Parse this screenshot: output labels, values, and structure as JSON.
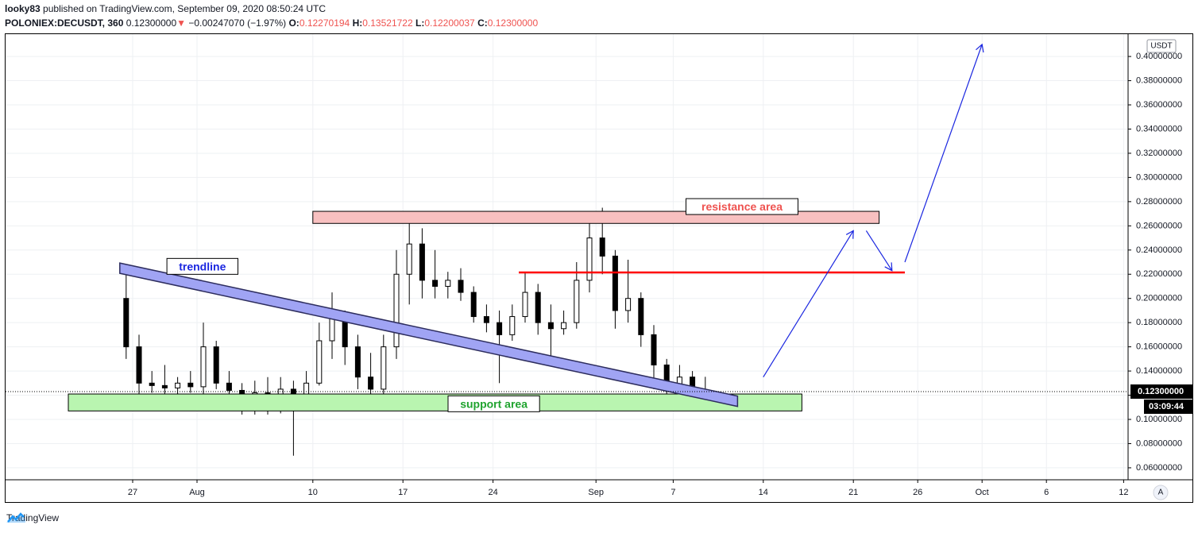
{
  "header": {
    "author": "looky83",
    "published_text": "published on TradingView.com, September 09, 2020 08:50:24 UTC",
    "symbol": "POLONIEX:DECUSDT, 360",
    "last": "0.12300000",
    "change_arrow": "▼",
    "change": "−0.00247070 (−1.97%)",
    "o_label": "O:",
    "o": "0.12270194",
    "h_label": "H:",
    "h": "0.13521722",
    "l_label": "L:",
    "l": "0.12200037",
    "c_label": "C:",
    "c": "0.12300000"
  },
  "price_axis": {
    "currency": "USDT",
    "last_price_label": "0.12300000",
    "countdown": "03:09:44",
    "auto_button": "A"
  },
  "annotations": {
    "trendline": "trendline",
    "resistance": "resistance area",
    "support": "support area"
  },
  "footer": {
    "brand": "TradingView"
  },
  "colors": {
    "up": "#26a69a",
    "down": "#ef5350",
    "candle": "#000000",
    "resistance_fill": "#f8c0c0",
    "support_fill": "#b9f5b0",
    "trend_fill": "#a0a4f4",
    "arrow": "#1a26e0",
    "level_line": "#ff0000"
  },
  "chart_data": {
    "type": "candlestick",
    "title": "POLONIEX:DECUSDT, 360",
    "ylabel": "USDT",
    "ylim": [
      0.054,
      0.408
    ],
    "y_ticks": [
      0.06,
      0.08,
      0.1,
      0.12,
      0.14,
      0.16,
      0.18,
      0.2,
      0.22,
      0.24,
      0.26,
      0.28,
      0.3,
      0.32,
      0.34,
      0.36,
      0.38,
      0.4
    ],
    "y_tick_labels": [
      "0.06000000",
      "0.08000000",
      "0.10000000",
      "0.12000000",
      "0.14000000",
      "0.16000000",
      "0.18000000",
      "0.20000000",
      "0.22000000",
      "0.24000000",
      "0.26000000",
      "0.28000000",
      "0.30000000",
      "0.32000000",
      "0.34000000",
      "0.36000000",
      "0.38000000",
      "0.40000000"
    ],
    "x_axis": {
      "labels": [
        "27",
        "Aug",
        "10",
        "17",
        "24",
        "Sep",
        "7",
        "14",
        "21",
        "26",
        "Oct",
        "6",
        "12"
      ],
      "dates": [
        "2020-07-27",
        "2020-08-01",
        "2020-08-10",
        "2020-08-17",
        "2020-08-24",
        "2020-09-01",
        "2020-09-07",
        "2020-09-14",
        "2020-09-21",
        "2020-09-26",
        "2020-10-01",
        "2020-10-06",
        "2020-10-12"
      ]
    },
    "last_price": 0.123,
    "ohlc_last": {
      "open": 0.12270194,
      "high": 0.13521722,
      "low": 0.12200037,
      "close": 0.123
    },
    "daily_range": [
      {
        "date": "2020-07-26",
        "open": 0.2,
        "high": 0.22,
        "low": 0.15,
        "close": 0.16
      },
      {
        "date": "2020-07-27",
        "open": 0.16,
        "high": 0.17,
        "low": 0.12,
        "close": 0.13
      },
      {
        "date": "2020-07-28",
        "open": 0.13,
        "high": 0.14,
        "low": 0.122,
        "close": 0.128
      },
      {
        "date": "2020-07-29",
        "open": 0.128,
        "high": 0.145,
        "low": 0.12,
        "close": 0.126
      },
      {
        "date": "2020-07-30",
        "open": 0.126,
        "high": 0.135,
        "low": 0.12,
        "close": 0.13
      },
      {
        "date": "2020-07-31",
        "open": 0.13,
        "high": 0.14,
        "low": 0.122,
        "close": 0.127
      },
      {
        "date": "2020-08-01",
        "open": 0.127,
        "high": 0.18,
        "low": 0.12,
        "close": 0.16
      },
      {
        "date": "2020-08-02",
        "open": 0.16,
        "high": 0.165,
        "low": 0.125,
        "close": 0.13
      },
      {
        "date": "2020-08-03",
        "open": 0.13,
        "high": 0.14,
        "low": 0.118,
        "close": 0.124
      },
      {
        "date": "2020-08-04",
        "open": 0.124,
        "high": 0.13,
        "low": 0.104,
        "close": 0.118
      },
      {
        "date": "2020-08-05",
        "open": 0.118,
        "high": 0.132,
        "low": 0.104,
        "close": 0.122
      },
      {
        "date": "2020-08-06",
        "open": 0.122,
        "high": 0.135,
        "low": 0.104,
        "close": 0.12
      },
      {
        "date": "2020-08-07",
        "open": 0.12,
        "high": 0.135,
        "low": 0.105,
        "close": 0.125
      },
      {
        "date": "2020-08-08",
        "open": 0.125,
        "high": 0.132,
        "low": 0.07,
        "close": 0.118
      },
      {
        "date": "2020-08-09",
        "open": 0.118,
        "high": 0.14,
        "low": 0.112,
        "close": 0.13
      },
      {
        "date": "2020-08-10",
        "open": 0.13,
        "high": 0.18,
        "low": 0.128,
        "close": 0.165
      },
      {
        "date": "2020-08-11",
        "open": 0.165,
        "high": 0.205,
        "low": 0.15,
        "close": 0.185
      },
      {
        "date": "2020-08-12",
        "open": 0.185,
        "high": 0.19,
        "low": 0.145,
        "close": 0.16
      },
      {
        "date": "2020-08-13",
        "open": 0.16,
        "high": 0.17,
        "low": 0.125,
        "close": 0.135
      },
      {
        "date": "2020-08-14",
        "open": 0.135,
        "high": 0.155,
        "low": 0.107,
        "close": 0.125
      },
      {
        "date": "2020-08-15",
        "open": 0.125,
        "high": 0.17,
        "low": 0.107,
        "close": 0.16
      },
      {
        "date": "2020-08-16",
        "open": 0.16,
        "high": 0.24,
        "low": 0.15,
        "close": 0.22
      },
      {
        "date": "2020-08-17",
        "open": 0.22,
        "high": 0.265,
        "low": 0.195,
        "close": 0.245
      },
      {
        "date": "2020-08-18",
        "open": 0.245,
        "high": 0.258,
        "low": 0.2,
        "close": 0.215
      },
      {
        "date": "2020-08-19",
        "open": 0.215,
        "high": 0.24,
        "low": 0.2,
        "close": 0.21
      },
      {
        "date": "2020-08-20",
        "open": 0.21,
        "high": 0.222,
        "low": 0.2,
        "close": 0.215
      },
      {
        "date": "2020-08-21",
        "open": 0.215,
        "high": 0.225,
        "low": 0.198,
        "close": 0.205
      },
      {
        "date": "2020-08-22",
        "open": 0.205,
        "high": 0.21,
        "low": 0.18,
        "close": 0.185
      },
      {
        "date": "2020-08-23",
        "open": 0.185,
        "high": 0.195,
        "low": 0.172,
        "close": 0.18
      },
      {
        "date": "2020-08-24",
        "open": 0.18,
        "high": 0.19,
        "low": 0.13,
        "close": 0.17
      },
      {
        "date": "2020-08-25",
        "open": 0.17,
        "high": 0.195,
        "low": 0.165,
        "close": 0.185
      },
      {
        "date": "2020-08-26",
        "open": 0.185,
        "high": 0.222,
        "low": 0.18,
        "close": 0.205
      },
      {
        "date": "2020-08-27",
        "open": 0.205,
        "high": 0.212,
        "low": 0.17,
        "close": 0.18
      },
      {
        "date": "2020-08-28",
        "open": 0.18,
        "high": 0.195,
        "low": 0.148,
        "close": 0.175
      },
      {
        "date": "2020-08-29",
        "open": 0.175,
        "high": 0.19,
        "low": 0.17,
        "close": 0.18
      },
      {
        "date": "2020-08-30",
        "open": 0.18,
        "high": 0.23,
        "low": 0.175,
        "close": 0.215
      },
      {
        "date": "2020-08-31",
        "open": 0.215,
        "high": 0.27,
        "low": 0.205,
        "close": 0.25
      },
      {
        "date": "2020-09-01",
        "open": 0.25,
        "high": 0.275,
        "low": 0.22,
        "close": 0.235
      },
      {
        "date": "2020-09-02",
        "open": 0.235,
        "high": 0.24,
        "low": 0.175,
        "close": 0.19
      },
      {
        "date": "2020-09-03",
        "open": 0.19,
        "high": 0.232,
        "low": 0.18,
        "close": 0.2
      },
      {
        "date": "2020-09-04",
        "open": 0.2,
        "high": 0.205,
        "low": 0.16,
        "close": 0.17
      },
      {
        "date": "2020-09-05",
        "open": 0.17,
        "high": 0.178,
        "low": 0.125,
        "close": 0.145
      },
      {
        "date": "2020-09-06",
        "open": 0.145,
        "high": 0.15,
        "low": 0.109,
        "close": 0.128
      },
      {
        "date": "2020-09-07",
        "open": 0.128,
        "high": 0.145,
        "low": 0.12,
        "close": 0.135
      },
      {
        "date": "2020-09-08",
        "open": 0.135,
        "high": 0.14,
        "low": 0.12,
        "close": 0.126
      },
      {
        "date": "2020-09-09",
        "open": 0.12270194,
        "high": 0.13521722,
        "low": 0.12200037,
        "close": 0.123
      }
    ],
    "drawings": [
      {
        "type": "rectangle",
        "label": "resistance area",
        "y_range": [
          0.262,
          0.272
        ],
        "x_range": [
          "2020-08-10",
          "2020-09-23"
        ]
      },
      {
        "type": "rectangle",
        "label": "support area",
        "y_range": [
          0.107,
          0.121
        ],
        "x_range": [
          "2020-07-22",
          "2020-09-17"
        ]
      },
      {
        "type": "channel",
        "label": "trendline",
        "from": [
          "2020-07-26",
          0.225
        ],
        "to": [
          "2020-09-12",
          0.115
        ]
      },
      {
        "type": "horizontal_line",
        "y": 0.2215,
        "x_range": [
          "2020-08-26",
          "2020-09-25"
        ]
      },
      {
        "type": "arrow",
        "from": [
          "2020-09-14",
          0.135
        ],
        "to": [
          "2020-09-21",
          0.256
        ]
      },
      {
        "type": "arrow",
        "from": [
          "2020-09-22",
          0.256
        ],
        "to": [
          "2020-09-24",
          0.223
        ]
      },
      {
        "type": "arrow",
        "from": [
          "2020-09-25",
          0.23
        ],
        "to": [
          "2020-10-01",
          0.41
        ]
      }
    ]
  }
}
